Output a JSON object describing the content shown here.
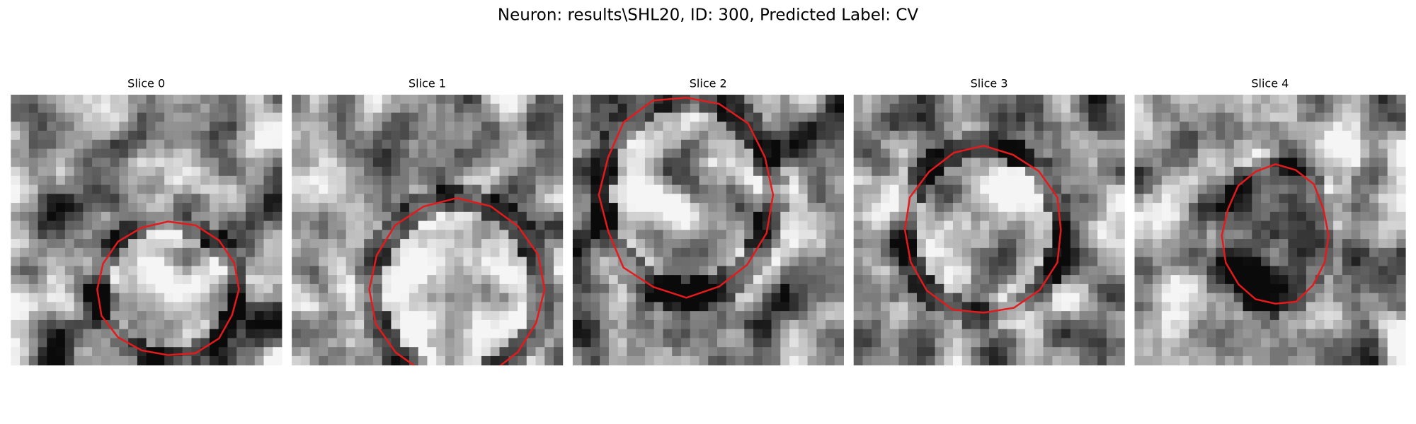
{
  "header": {
    "title": "Neuron: results\\SHL20, ID: 300, Predicted Label: CV"
  },
  "panels": [
    {
      "title": "Slice 0"
    },
    {
      "title": "Slice 1"
    },
    {
      "title": "Slice 2"
    },
    {
      "title": "Slice 3"
    },
    {
      "title": "Slice 4"
    }
  ]
}
